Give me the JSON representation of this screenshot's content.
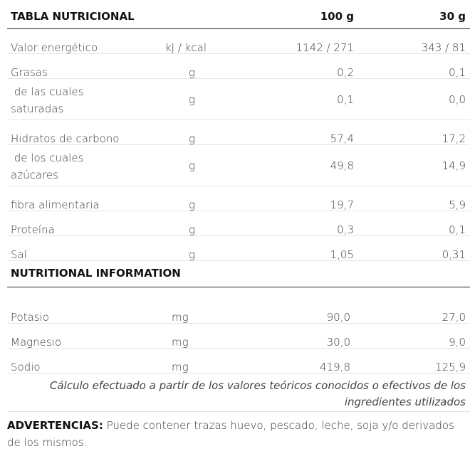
{
  "table": {
    "title": "TABLA NUTRICIONAL",
    "col_100": "100 g",
    "col_30": "30 g",
    "rows": [
      {
        "name": "Valor energético",
        "unit": "kJ / kcal",
        "v100": "1142 / 271",
        "v30": "343 / 81"
      },
      {
        "name": "Grasas",
        "unit": "g",
        "v100": "0,2",
        "v30": "0,1"
      },
      {
        "name": " de las cuales saturadas",
        "unit": "g",
        "v100": "0,1",
        "v30": "0,0"
      },
      {
        "name": "Hidratos de carbono",
        "unit": "g",
        "v100": "57,4",
        "v30": "17,2"
      },
      {
        "name": " de los cuales azúcares",
        "unit": "g",
        "v100": "49,8",
        "v30": "14,9"
      },
      {
        "name": "fibra alimentaria",
        "unit": "g",
        "v100": "19,7",
        "v30": "5,9"
      },
      {
        "name": "Proteína",
        "unit": "g",
        "v100": "0,3",
        "v30": "0,1"
      },
      {
        "name": "Sal",
        "unit": "g",
        "v100": "1,05",
        "v30": "0,31"
      }
    ]
  },
  "info": {
    "title": "NUTRITIONAL INFORMATION",
    "rows": [
      {
        "name": "Potasio",
        "unit": "mg",
        "v100": "90,0",
        "v30": "27,0"
      },
      {
        "name": "Magnesio",
        "unit": "mg",
        "v100": "30,0",
        "v30": "9,0"
      },
      {
        "name": "Sodio",
        "unit": "mg",
        "v100": "419,8",
        "v30": "125,9"
      }
    ],
    "note": "Cálculo efectuado a partir de los valores teóricos conocidos o efectivos de los ingredientes utilizados"
  },
  "warning": {
    "label": "ADVERTENCIAS:",
    "text": " Puede contener trazas huevo, pescado, leche, soja y/o derivados de los mismos."
  }
}
